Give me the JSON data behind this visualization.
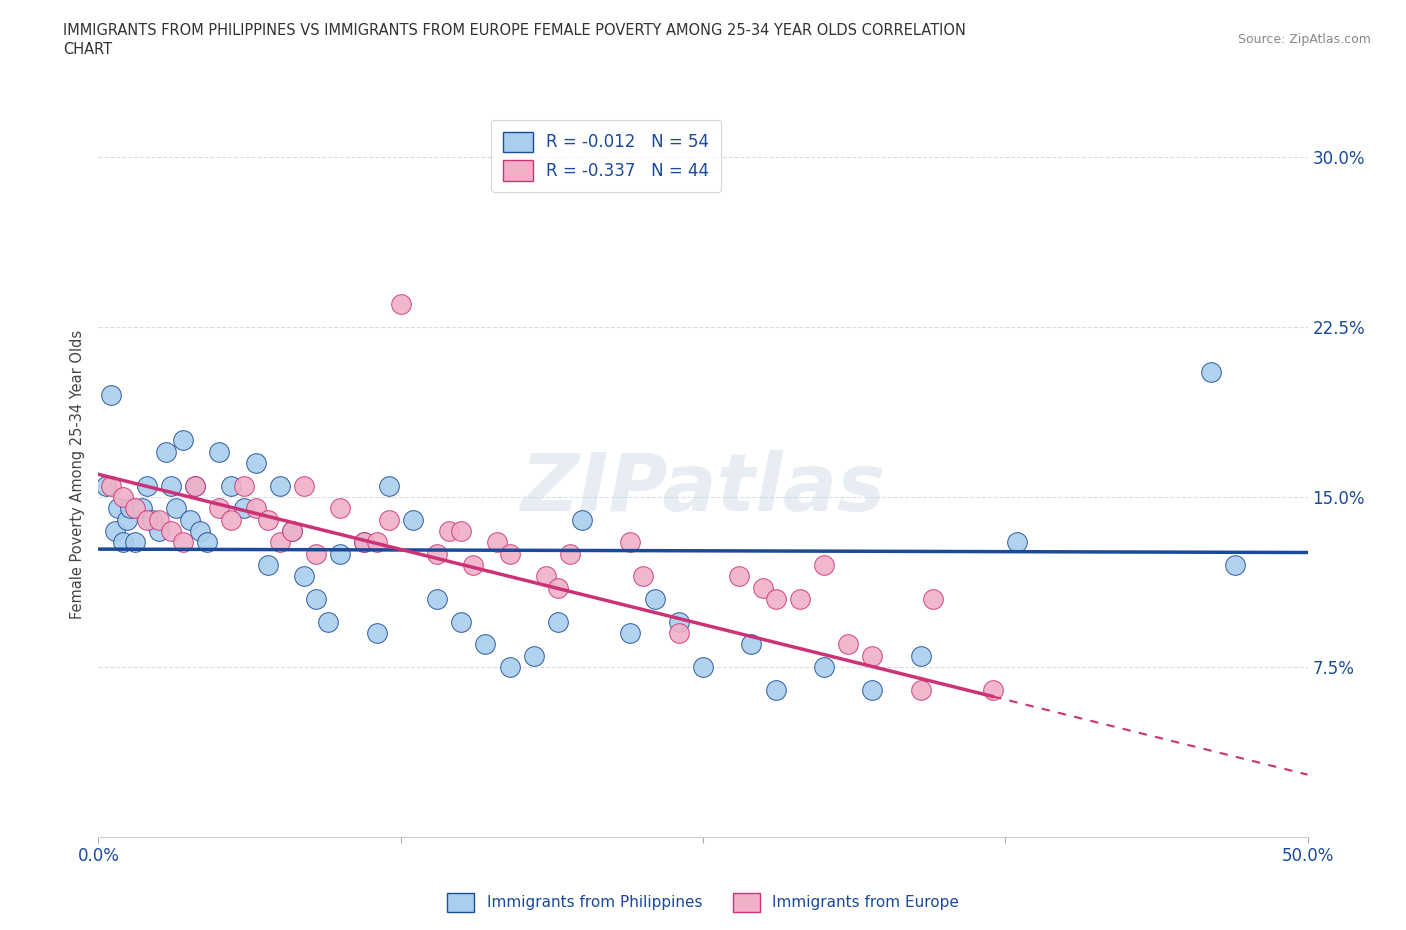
{
  "title_line1": "IMMIGRANTS FROM PHILIPPINES VS IMMIGRANTS FROM EUROPE FEMALE POVERTY AMONG 25-34 YEAR OLDS CORRELATION",
  "title_line2": "CHART",
  "source_text": "Source: ZipAtlas.com",
  "ylabel": "Female Poverty Among 25-34 Year Olds",
  "xlim": [
    0.0,
    0.5
  ],
  "ylim": [
    0.0,
    0.32
  ],
  "yticks": [
    0.075,
    0.15,
    0.225,
    0.3
  ],
  "ytick_labels": [
    "7.5%",
    "15.0%",
    "22.5%",
    "30.0%"
  ],
  "xticks": [
    0.0,
    0.125,
    0.25,
    0.375,
    0.5
  ],
  "xtick_labels": [
    "0.0%",
    "",
    "",
    "",
    "50.0%"
  ],
  "grid_color": "#d8dce8",
  "background_color": "#ffffff",
  "watermark": "ZIPatlas",
  "legend_r1": "R = -0.012   N = 54",
  "legend_r2": "R = -0.337   N = 44",
  "color_philippines": "#aacfee",
  "color_europe": "#f0b0c8",
  "line_color_philippines": "#1a4a99",
  "line_color_europe": "#cc3377",
  "phil_intercept": 0.127,
  "phil_slope": -0.003,
  "euro_intercept": 0.16,
  "euro_slope": -0.265,
  "philippines_x": [
    0.003,
    0.005,
    0.007,
    0.008,
    0.01,
    0.012,
    0.013,
    0.015,
    0.018,
    0.02,
    0.022,
    0.025,
    0.028,
    0.03,
    0.032,
    0.035,
    0.038,
    0.04,
    0.042,
    0.045,
    0.05,
    0.055,
    0.06,
    0.065,
    0.07,
    0.075,
    0.08,
    0.085,
    0.09,
    0.095,
    0.1,
    0.11,
    0.115,
    0.12,
    0.13,
    0.14,
    0.15,
    0.16,
    0.17,
    0.18,
    0.19,
    0.2,
    0.22,
    0.23,
    0.24,
    0.25,
    0.27,
    0.28,
    0.3,
    0.32,
    0.34,
    0.38,
    0.46,
    0.47
  ],
  "philippines_y": [
    0.155,
    0.195,
    0.135,
    0.145,
    0.13,
    0.14,
    0.145,
    0.13,
    0.145,
    0.155,
    0.14,
    0.135,
    0.17,
    0.155,
    0.145,
    0.175,
    0.14,
    0.155,
    0.135,
    0.13,
    0.17,
    0.155,
    0.145,
    0.165,
    0.12,
    0.155,
    0.135,
    0.115,
    0.105,
    0.095,
    0.125,
    0.13,
    0.09,
    0.155,
    0.14,
    0.105,
    0.095,
    0.085,
    0.075,
    0.08,
    0.095,
    0.14,
    0.09,
    0.105,
    0.095,
    0.075,
    0.085,
    0.065,
    0.075,
    0.065,
    0.08,
    0.13,
    0.205,
    0.12
  ],
  "europe_x": [
    0.005,
    0.01,
    0.015,
    0.02,
    0.025,
    0.03,
    0.035,
    0.04,
    0.05,
    0.055,
    0.06,
    0.065,
    0.07,
    0.075,
    0.08,
    0.085,
    0.09,
    0.1,
    0.11,
    0.115,
    0.12,
    0.125,
    0.14,
    0.145,
    0.15,
    0.155,
    0.165,
    0.17,
    0.185,
    0.19,
    0.195,
    0.22,
    0.225,
    0.24,
    0.265,
    0.275,
    0.28,
    0.29,
    0.3,
    0.31,
    0.32,
    0.34,
    0.345,
    0.37
  ],
  "europe_y": [
    0.155,
    0.15,
    0.145,
    0.14,
    0.14,
    0.135,
    0.13,
    0.155,
    0.145,
    0.14,
    0.155,
    0.145,
    0.14,
    0.13,
    0.135,
    0.155,
    0.125,
    0.145,
    0.13,
    0.13,
    0.14,
    0.235,
    0.125,
    0.135,
    0.135,
    0.12,
    0.13,
    0.125,
    0.115,
    0.11,
    0.125,
    0.13,
    0.115,
    0.09,
    0.115,
    0.11,
    0.105,
    0.105,
    0.12,
    0.085,
    0.08,
    0.065,
    0.105,
    0.065
  ]
}
